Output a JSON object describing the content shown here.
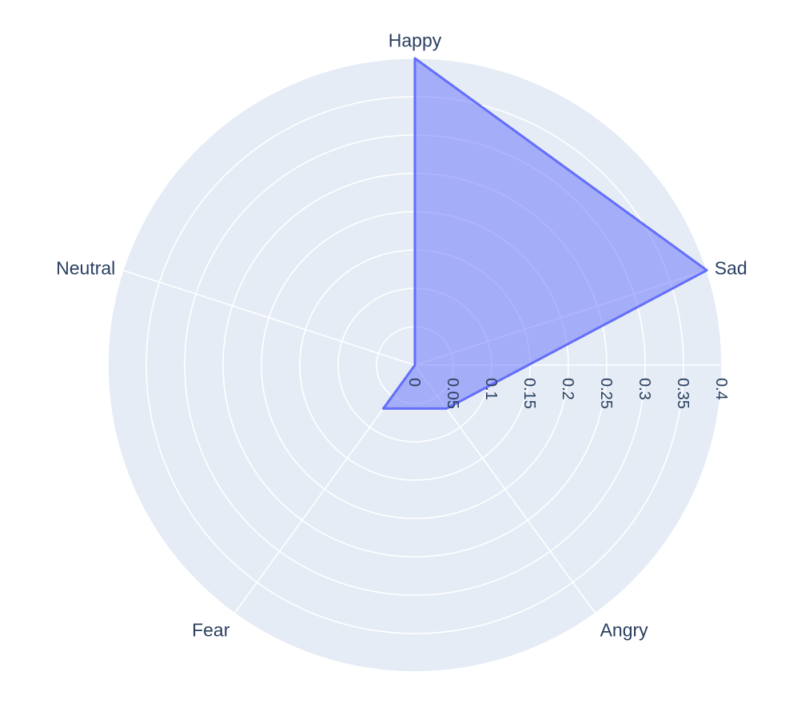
{
  "chart_data": {
    "type": "radar",
    "categories": [
      "Happy",
      "Sad",
      "Angry",
      "Fear",
      "Neutral"
    ],
    "series": [
      {
        "values": [
          0.4,
          0.4,
          0.07,
          0.07,
          0.0
        ]
      }
    ],
    "radial_axis": {
      "range": [
        0,
        0.4
      ],
      "tick_labels": [
        "0",
        "0.05",
        "0.1",
        "0.15",
        "0.2",
        "0.25",
        "0.3",
        "0.35",
        "0.4"
      ],
      "tick_values": [
        0,
        0.05,
        0.1,
        0.15,
        0.2,
        0.25,
        0.3,
        0.35,
        0.4
      ]
    },
    "grid": true,
    "colors": {
      "polar_background": "#e5ecf6",
      "grid_line": "#ffffff",
      "series_line": "#636efa",
      "series_fill": "rgba(99,110,250,0.5)",
      "text": "#2a3f5f"
    }
  }
}
